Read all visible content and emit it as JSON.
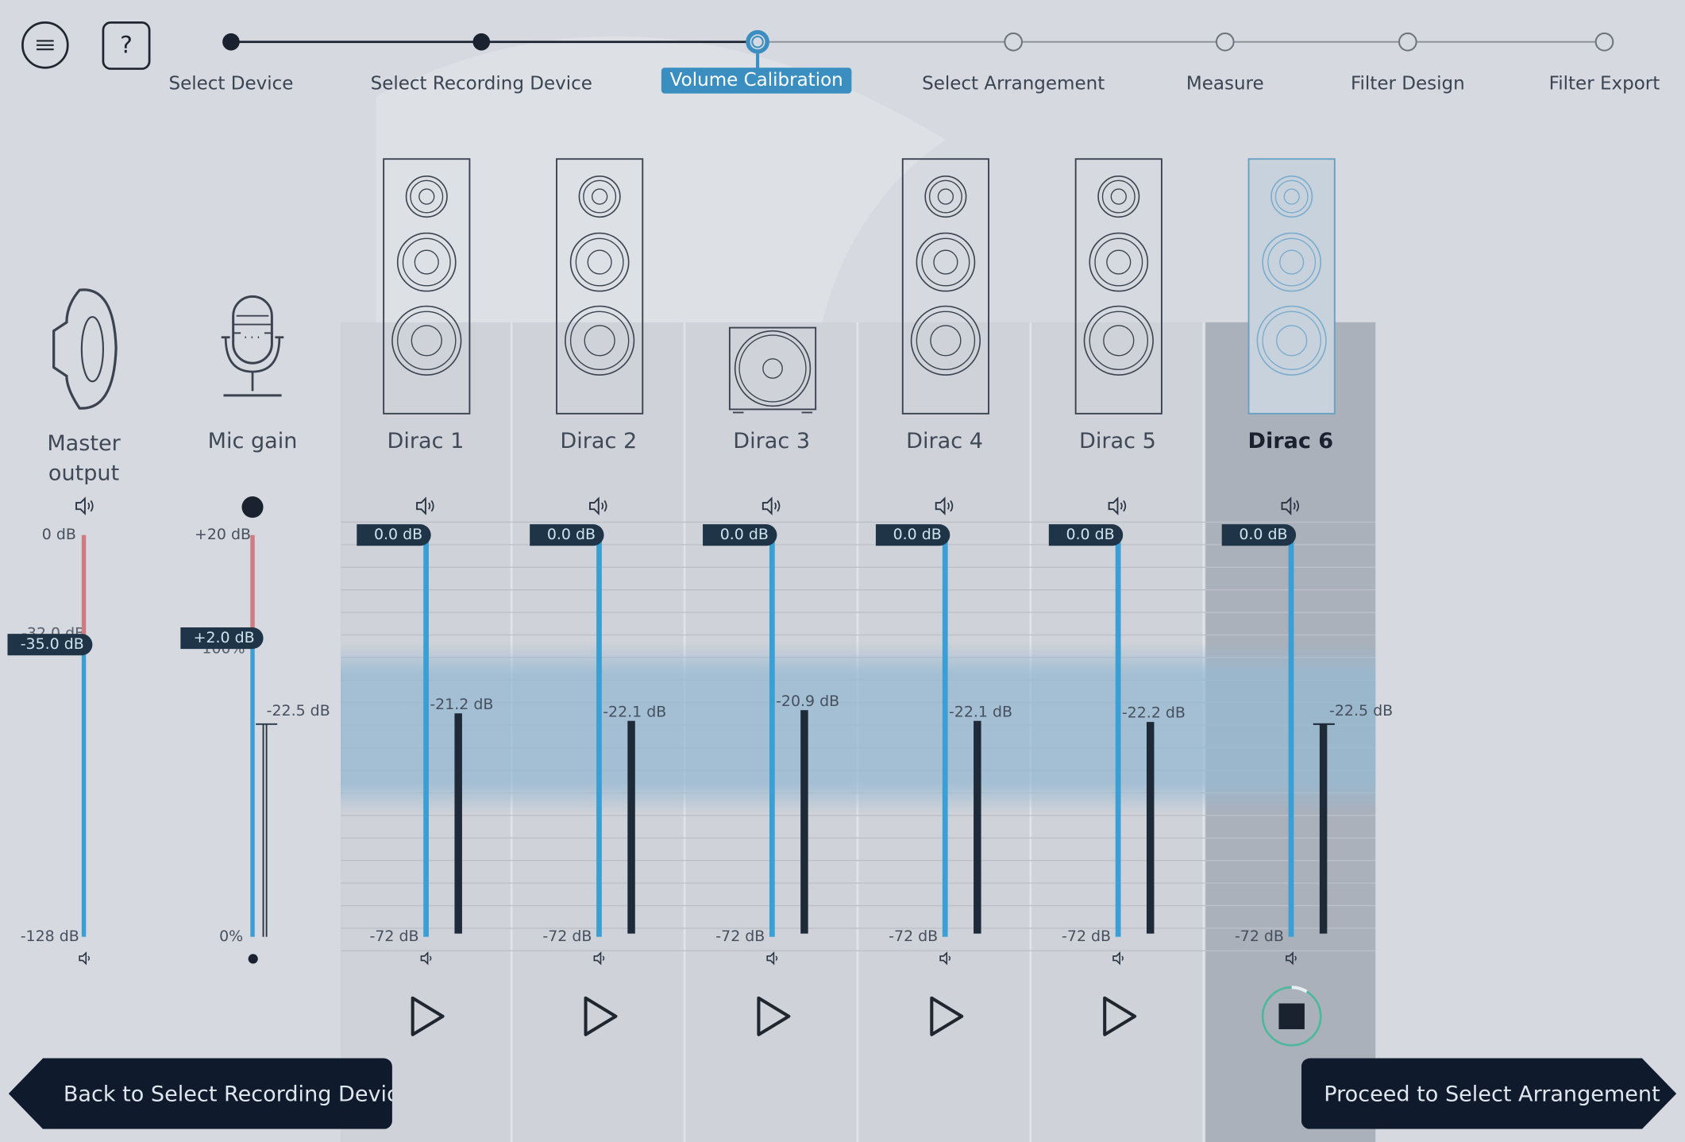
{
  "toolbar": {
    "menu_icon": "hamburger-menu-icon",
    "help_label": "?"
  },
  "steps": [
    {
      "label": "Select Device",
      "state": "done"
    },
    {
      "label": "Select Recording Device",
      "state": "done"
    },
    {
      "label": "Volume Calibration",
      "state": "active"
    },
    {
      "label": "Select Arrangement",
      "state": "todo"
    },
    {
      "label": "Measure",
      "state": "todo"
    },
    {
      "label": "Filter Design",
      "state": "todo"
    },
    {
      "label": "Filter Export",
      "state": "todo"
    }
  ],
  "master": {
    "label_line1": "Master",
    "label_line2": "output",
    "top_label": "0 dB",
    "bottom_label": "-128 dB",
    "value": "-35.0 dB",
    "hidden_tick": "-32.0 dB"
  },
  "mic": {
    "label": "Mic gain",
    "top_label": "+20 dB",
    "bottom_label": "0%",
    "value": "+2.0 dB",
    "hidden_tick": "100%",
    "level": "-22.5 dB"
  },
  "channels": [
    {
      "name": "Dirac 1",
      "gain": "0.0 dB",
      "bottom": "-72 dB",
      "level": "-21.2 dB",
      "type": "tower",
      "playing": false
    },
    {
      "name": "Dirac 2",
      "gain": "0.0 dB",
      "bottom": "-72 dB",
      "level": "-22.1 dB",
      "type": "tower",
      "playing": false
    },
    {
      "name": "Dirac 3",
      "gain": "0.0 dB",
      "bottom": "-72 dB",
      "level": "-20.9 dB",
      "type": "sub",
      "playing": false
    },
    {
      "name": "Dirac 4",
      "gain": "0.0 dB",
      "bottom": "-72 dB",
      "level": "-22.1 dB",
      "type": "tower",
      "playing": false
    },
    {
      "name": "Dirac 5",
      "gain": "0.0 dB",
      "bottom": "-72 dB",
      "level": "-22.2 dB",
      "type": "tower",
      "playing": false
    },
    {
      "name": "Dirac 6",
      "gain": "0.0 dB",
      "bottom": "-72 dB",
      "level": "-22.5 dB",
      "type": "tower",
      "playing": true
    }
  ],
  "nav": {
    "back_label": "Back to Select Recording Device",
    "next_label": "Proceed to Select Arrangement"
  },
  "colors": {
    "accent": "#3a9fd4",
    "dark": "#1f2a38",
    "active_step": "#3a8fc0",
    "clip_red": "#d07a82",
    "target_band": "#a6c2d6",
    "playing_ring": "#4fb89b"
  }
}
